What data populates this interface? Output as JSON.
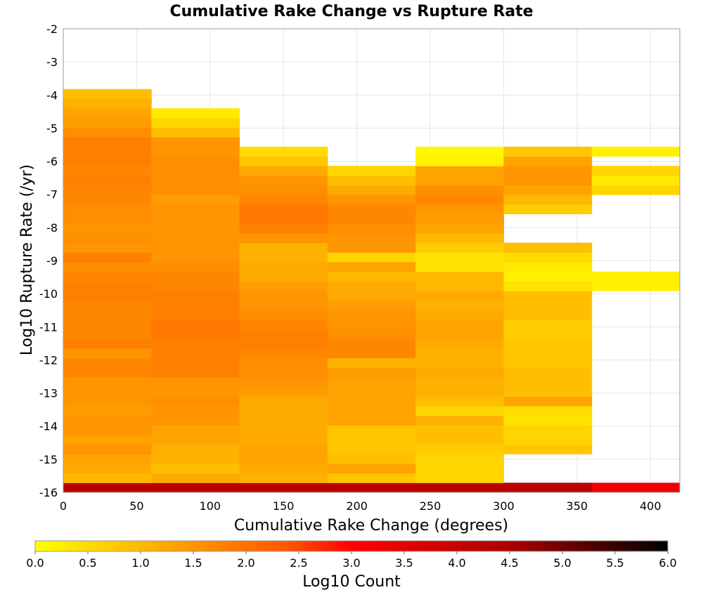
{
  "chart_data": {
    "type": "heatmap",
    "title": "Cumulative Rake Change vs Rupture Rate",
    "xlabel": "Cumulative Rake Change (degrees)",
    "ylabel": "Log10 Rupture Rate (/yr)",
    "xlim": [
      0,
      420
    ],
    "ylim": [
      -16,
      -2
    ],
    "xticks": [
      "0",
      "50",
      "100",
      "150",
      "200",
      "250",
      "300",
      "350",
      "400"
    ],
    "yticks": [
      "-2",
      "-3",
      "-4",
      "-5",
      "-6",
      "-7",
      "-8",
      "-9",
      "-10",
      "-11",
      "-12",
      "-13",
      "-14",
      "-15",
      "-16"
    ],
    "grid": true,
    "x_bin_width": 60,
    "y_bin_height": 0.29,
    "colorbar": {
      "label": "Log10 Count",
      "range": [
        0,
        6
      ],
      "ticks": [
        "0.0",
        "0.5",
        "1.0",
        "1.5",
        "2.0",
        "2.5",
        "3.0",
        "3.5",
        "4.0",
        "4.5",
        "5.0",
        "5.5",
        "6.0"
      ],
      "colors": [
        "#ffff00",
        "#ffaa00",
        "#ff5500",
        "#ff0000",
        "#aa0000",
        "#000000"
      ]
    },
    "columns": [
      {
        "x_start": 0,
        "y_start": -16.0,
        "values": [
          4.2,
          1.0,
          1.2,
          1.3,
          1.5,
          1.3,
          1.5,
          1.5,
          1.4,
          1.5,
          1.5,
          1.5,
          1.7,
          1.7,
          1.5,
          1.8,
          1.7,
          1.7,
          1.7,
          1.7,
          1.8,
          1.8,
          1.7,
          1.6,
          1.8,
          1.5,
          1.6,
          1.5,
          1.6,
          1.6,
          1.7,
          1.7,
          1.8,
          1.7,
          1.8,
          1.8,
          1.8,
          1.6,
          1.4,
          1.3,
          1.1,
          0.9
        ]
      },
      {
        "x_start": 60,
        "y_start": -16.0,
        "values": [
          4.2,
          1.2,
          0.9,
          1.1,
          1.1,
          1.3,
          1.3,
          1.5,
          1.5,
          1.6,
          1.5,
          1.5,
          1.8,
          1.8,
          1.8,
          1.8,
          1.9,
          1.9,
          1.8,
          1.8,
          1.8,
          1.7,
          1.7,
          1.6,
          1.5,
          1.5,
          1.5,
          1.5,
          1.5,
          1.5,
          1.4,
          1.6,
          1.6,
          1.6,
          1.6,
          1.5,
          1.5,
          0.9,
          0.6,
          0.3
        ]
      },
      {
        "x_start": 120,
        "y_start": -16.0,
        "values": [
          4.2,
          1.1,
          1.2,
          1.3,
          1.3,
          1.2,
          1.2,
          1.2,
          1.2,
          1.2,
          1.4,
          1.5,
          1.6,
          1.6,
          1.7,
          1.8,
          1.8,
          1.7,
          1.6,
          1.5,
          1.5,
          1.4,
          1.2,
          1.2,
          1.1,
          1.1,
          1.5,
          1.8,
          1.9,
          1.9,
          1.7,
          1.6,
          1.5,
          1.2,
          0.8,
          0.5
        ]
      },
      {
        "x_start": 180,
        "y_start": -16.0,
        "values": [
          4.2,
          0.8,
          1.3,
          0.9,
          0.8,
          0.8,
          0.8,
          1.3,
          1.3,
          1.3,
          1.3,
          1.3,
          1.4,
          1.1,
          1.7,
          1.7,
          1.6,
          1.5,
          1.5,
          1.4,
          1.2,
          1.2,
          1.0,
          1.3,
          0.6,
          1.5,
          1.5,
          1.6,
          1.7,
          1.7,
          1.5,
          1.2,
          0.9,
          0.6
        ]
      },
      {
        "x_start": 240,
        "y_start": -16.0,
        "values": [
          4.2,
          0.6,
          0.6,
          0.6,
          0.7,
          0.9,
          0.9,
          1.1,
          0.6,
          0.9,
          1.1,
          1.1,
          1.2,
          1.1,
          1.1,
          1.2,
          1.3,
          1.3,
          1.2,
          1.1,
          1.2,
          1.0,
          1.0,
          0.4,
          0.4,
          0.7,
          1.0,
          1.3,
          1.4,
          1.5,
          1.7,
          1.6,
          1.3,
          1.3,
          0.2,
          0.1
        ]
      },
      {
        "x_start": 300,
        "y_start": -16.0,
        "values": [
          4.2,
          null,
          null,
          null,
          0.8,
          0.6,
          0.6,
          0.4,
          0.5,
          1.3,
          0.9,
          0.9,
          0.9,
          0.8,
          0.8,
          0.8,
          0.7,
          0.7,
          0.9,
          0.9,
          0.9,
          0.4,
          0.2,
          0.3,
          0.5,
          0.9,
          null,
          null,
          null,
          0.7,
          1.0,
          1.3,
          1.5,
          1.5,
          1.3,
          0.8
        ]
      },
      {
        "x_start": 360,
        "y_start": -16.0,
        "values": [
          3.3,
          null,
          null,
          null,
          null,
          null,
          null,
          null,
          null,
          null,
          null,
          null,
          null,
          null,
          null,
          null,
          null,
          null,
          null,
          null,
          null,
          0.2,
          0.2,
          null,
          null,
          null,
          null,
          null,
          null,
          null,
          null,
          0.6,
          0.3,
          0.6,
          null,
          0.2
        ]
      }
    ]
  }
}
